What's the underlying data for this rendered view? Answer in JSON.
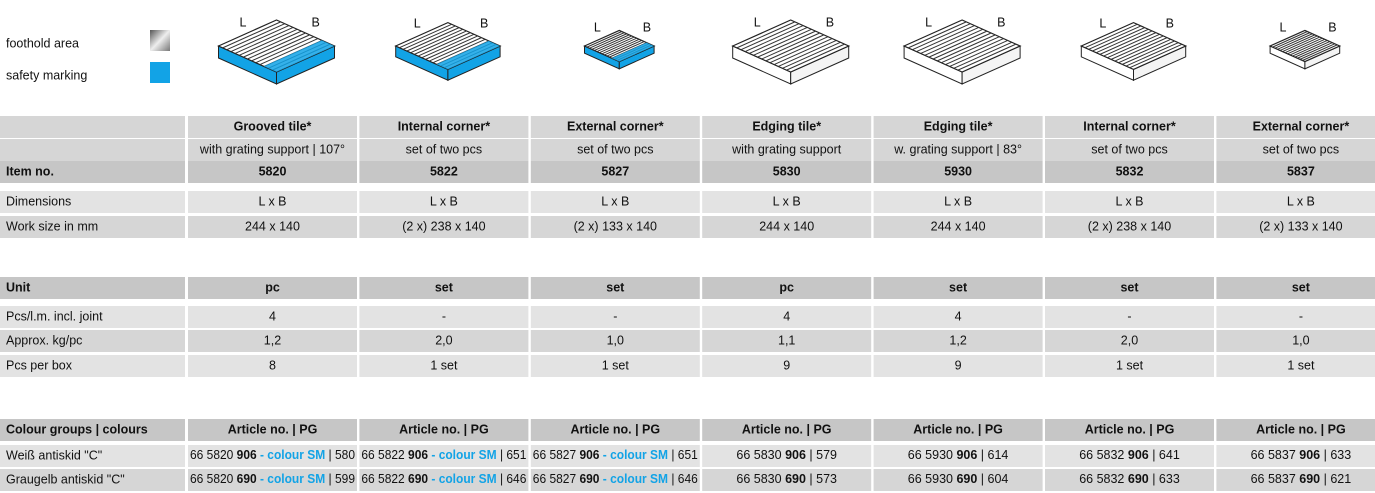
{
  "legend": [
    {
      "label": "foothold area"
    },
    {
      "label": "safety marking"
    }
  ],
  "row_labels": [
    "Item no.",
    "Dimensions",
    "Work size in mm",
    "Unit",
    "Pcs/l.m. incl. joint",
    "Approx. kg/pc",
    "Pcs per box",
    "Colour groups | colours",
    "Weiß antiskid \"C\"",
    "Graugelb antiskid \"C\""
  ],
  "columns": [
    {
      "title": "Grooved tile*",
      "subtitle": "with grating support | 107°",
      "diagram_labels": [
        "L",
        "B"
      ],
      "safety_marking": true,
      "item_no": "5820",
      "dimensions": "L x B",
      "work_size": "244 x 140",
      "unit": "pc",
      "pcs_per_lm": "4",
      "kg_per_pc": "1,2",
      "pcs_per_box": "8",
      "article_header": "Article no. | PG",
      "articles": [
        [
          {
            "text": "66 5820 "
          },
          {
            "text": "906",
            "style": "bold"
          },
          {
            "text": " - colour SM",
            "style": "blue"
          },
          {
            "text": " | 580"
          }
        ],
        [
          {
            "text": "66 5820 "
          },
          {
            "text": "690",
            "style": "bold"
          },
          {
            "text": " - colour SM",
            "style": "blue"
          },
          {
            "text": " | 599"
          }
        ]
      ]
    },
    {
      "title": "Internal corner*",
      "subtitle": "set of two pcs",
      "diagram_labels": [
        "L",
        "B"
      ],
      "safety_marking": true,
      "item_no": "5822",
      "dimensions": "L x B",
      "work_size": "(2 x) 238 x 140",
      "unit": "set",
      "pcs_per_lm": "-",
      "kg_per_pc": "2,0",
      "pcs_per_box": "1 set",
      "article_header": "Article no. | PG",
      "articles": [
        [
          {
            "text": "66 5822 "
          },
          {
            "text": "906",
            "style": "bold"
          },
          {
            "text": " - colour SM",
            "style": "blue"
          },
          {
            "text": " | 651"
          }
        ],
        [
          {
            "text": "66 5822 "
          },
          {
            "text": "690",
            "style": "bold"
          },
          {
            "text": " - colour SM",
            "style": "blue"
          },
          {
            "text": " | 646"
          }
        ]
      ]
    },
    {
      "title": "External corner*",
      "subtitle": "set of two pcs",
      "diagram_labels": [
        "L",
        "B"
      ],
      "safety_marking": true,
      "item_no": "5827",
      "dimensions": "L x B",
      "work_size": "(2 x) 133 x 140",
      "unit": "set",
      "pcs_per_lm": "-",
      "kg_per_pc": "1,0",
      "pcs_per_box": "1 set",
      "article_header": "Article no. | PG",
      "articles": [
        [
          {
            "text": "66 5827 "
          },
          {
            "text": "906",
            "style": "bold"
          },
          {
            "text": " - colour SM",
            "style": "blue"
          },
          {
            "text": " | 651"
          }
        ],
        [
          {
            "text": "66 5827 "
          },
          {
            "text": "690",
            "style": "bold"
          },
          {
            "text": " - colour SM",
            "style": "blue"
          },
          {
            "text": " | 646"
          }
        ]
      ]
    },
    {
      "title": "Edging tile*",
      "subtitle": "with grating support",
      "diagram_labels": [
        "L",
        "B"
      ],
      "safety_marking": false,
      "item_no": "5830",
      "dimensions": "L x B",
      "work_size": "244 x 140",
      "unit": "pc",
      "pcs_per_lm": "4",
      "kg_per_pc": "1,1",
      "pcs_per_box": "9",
      "article_header": "Article no. | PG",
      "articles": [
        [
          {
            "text": "66 5830 "
          },
          {
            "text": "906",
            "style": "bold"
          },
          {
            "text": " | 579"
          }
        ],
        [
          {
            "text": "66 5830 "
          },
          {
            "text": "690",
            "style": "bold"
          },
          {
            "text": " | 573"
          }
        ]
      ]
    },
    {
      "title": "Edging tile*",
      "subtitle": "w. grating support | 83°",
      "diagram_labels": [
        "L",
        "B"
      ],
      "safety_marking": false,
      "item_no": "5930",
      "dimensions": "L x B",
      "work_size": "244 x 140",
      "unit": "set",
      "pcs_per_lm": "4",
      "kg_per_pc": "1,2",
      "pcs_per_box": "9",
      "article_header": "Article no. | PG",
      "articles": [
        [
          {
            "text": "66 5930 "
          },
          {
            "text": "906",
            "style": "bold"
          },
          {
            "text": " | 614"
          }
        ],
        [
          {
            "text": "66 5930 "
          },
          {
            "text": "690",
            "style": "bold"
          },
          {
            "text": " | 604"
          }
        ]
      ]
    },
    {
      "title": "Internal corner*",
      "subtitle": "set of two pcs",
      "diagram_labels": [
        "L",
        "B"
      ],
      "safety_marking": false,
      "item_no": "5832",
      "dimensions": "L x B",
      "work_size": "(2 x) 238 x 140",
      "unit": "set",
      "pcs_per_lm": "-",
      "kg_per_pc": "2,0",
      "pcs_per_box": "1 set",
      "article_header": "Article no. | PG",
      "articles": [
        [
          {
            "text": "66 5832 "
          },
          {
            "text": "906",
            "style": "bold"
          },
          {
            "text": " | 641"
          }
        ],
        [
          {
            "text": "66 5832 "
          },
          {
            "text": "690",
            "style": "bold"
          },
          {
            "text": " | 633"
          }
        ]
      ]
    },
    {
      "title": "External corner*",
      "subtitle": "set of two pcs",
      "diagram_labels": [
        "L",
        "B"
      ],
      "safety_marking": false,
      "item_no": "5837",
      "dimensions": "L x B",
      "work_size": "(2 x) 133 x 140",
      "unit": "set",
      "pcs_per_lm": "-",
      "kg_per_pc": "1,0",
      "pcs_per_box": "1 set",
      "article_header": "Article no. | PG",
      "articles": [
        [
          {
            "text": "66 5837 "
          },
          {
            "text": "906",
            "style": "bold"
          },
          {
            "text": " | 633"
          }
        ],
        [
          {
            "text": "66 5837 "
          },
          {
            "text": "690",
            "style": "bold"
          },
          {
            "text": " | 621"
          }
        ]
      ]
    }
  ]
}
